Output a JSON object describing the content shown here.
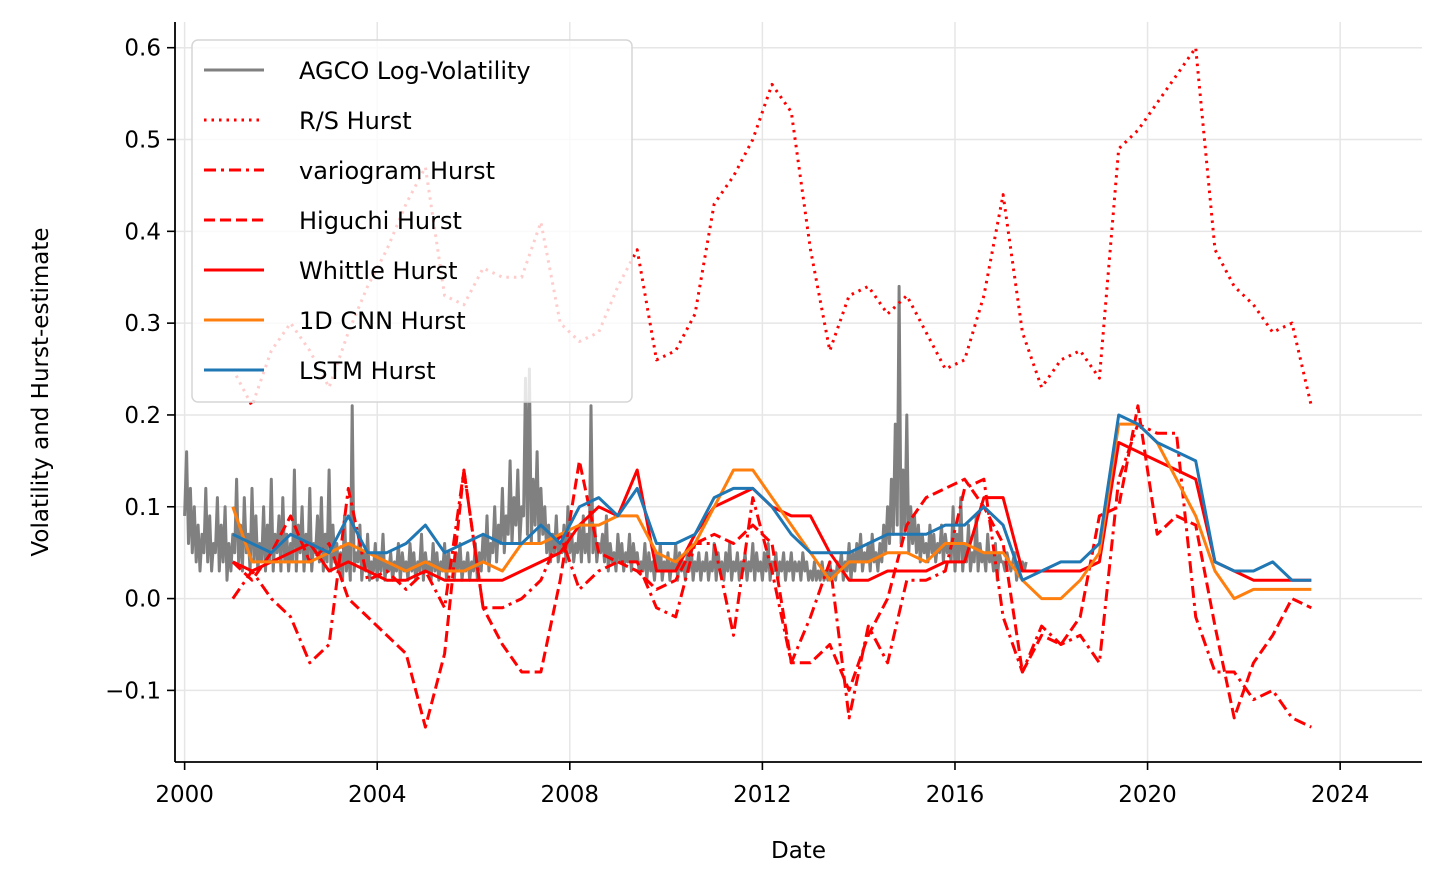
{
  "chart_data": {
    "type": "line",
    "xlabel": "Date",
    "ylabel": "Volatility and Hurst-estimate",
    "xlim": [
      1999.8,
      2025.7
    ],
    "ylim": [
      -0.178,
      0.628
    ],
    "x_ticks": [
      2000,
      2004,
      2008,
      2012,
      2016,
      2020,
      2024
    ],
    "x_tick_labels": [
      "2000",
      "2004",
      "2008",
      "2012",
      "2016",
      "2020",
      "2024"
    ],
    "y_ticks": [
      -0.1,
      0.0,
      0.1,
      0.2,
      0.3,
      0.4,
      0.5,
      0.6
    ],
    "y_tick_labels": [
      "−0.1",
      "0.0",
      "0.1",
      "0.2",
      "0.3",
      "0.4",
      "0.5",
      "0.6"
    ],
    "grid": true,
    "legend_position": "top-left",
    "volatility_series": {
      "name": "AGCO Log-Volatility",
      "color": "#808080",
      "x_start": 2000.0,
      "x_step": 0.04,
      "values": [
        0.09,
        0.16,
        0.06,
        0.12,
        0.05,
        0.1,
        0.04,
        0.08,
        0.03,
        0.07,
        0.05,
        0.12,
        0.04,
        0.09,
        0.03,
        0.06,
        0.05,
        0.11,
        0.03,
        0.08,
        0.04,
        0.1,
        0.02,
        0.06,
        0.03,
        0.07,
        0.05,
        0.13,
        0.04,
        0.08,
        0.03,
        0.11,
        0.05,
        0.07,
        0.03,
        0.12,
        0.04,
        0.09,
        0.03,
        0.06,
        0.04,
        0.1,
        0.03,
        0.08,
        0.04,
        0.13,
        0.03,
        0.07,
        0.05,
        0.09,
        0.03,
        0.11,
        0.04,
        0.07,
        0.03,
        0.06,
        0.04,
        0.14,
        0.03,
        0.08,
        0.05,
        0.1,
        0.03,
        0.07,
        0.04,
        0.12,
        0.03,
        0.06,
        0.05,
        0.09,
        0.04,
        0.11,
        0.03,
        0.07,
        0.04,
        0.14,
        0.03,
        0.08,
        0.04,
        0.06,
        0.03,
        0.05,
        0.02,
        0.09,
        0.03,
        0.06,
        0.02,
        0.21,
        0.03,
        0.05,
        0.04,
        0.08,
        0.02,
        0.05,
        0.03,
        0.07,
        0.02,
        0.04,
        0.03,
        0.06,
        0.02,
        0.05,
        0.03,
        0.07,
        0.02,
        0.04,
        0.03,
        0.05,
        0.02,
        0.04,
        0.03,
        0.06,
        0.02,
        0.05,
        0.03,
        0.04,
        0.02,
        0.06,
        0.03,
        0.05,
        0.02,
        0.04,
        0.03,
        0.07,
        0.02,
        0.05,
        0.03,
        0.04,
        0.02,
        0.06,
        0.03,
        0.05,
        0.02,
        0.04,
        0.03,
        0.06,
        0.02,
        0.05,
        0.03,
        0.04,
        0.02,
        0.05,
        0.03,
        0.06,
        0.02,
        0.04,
        0.03,
        0.05,
        0.02,
        0.04,
        0.03,
        0.06,
        0.02,
        0.05,
        0.03,
        0.07,
        0.04,
        0.09,
        0.03,
        0.06,
        0.05,
        0.1,
        0.04,
        0.08,
        0.06,
        0.12,
        0.05,
        0.09,
        0.07,
        0.15,
        0.06,
        0.11,
        0.08,
        0.14,
        0.06,
        0.1,
        0.09,
        0.24,
        0.07,
        0.25,
        0.06,
        0.13,
        0.08,
        0.16,
        0.06,
        0.12,
        0.07,
        0.1,
        0.05,
        0.08,
        0.04,
        0.07,
        0.05,
        0.09,
        0.04,
        0.06,
        0.05,
        0.08,
        0.04,
        0.1,
        0.05,
        0.07,
        0.04,
        0.06,
        0.05,
        0.08,
        0.04,
        0.09,
        0.05,
        0.07,
        0.04,
        0.21,
        0.05,
        0.08,
        0.04,
        0.06,
        0.05,
        0.07,
        0.04,
        0.09,
        0.03,
        0.06,
        0.04,
        0.05,
        0.03,
        0.07,
        0.04,
        0.06,
        0.03,
        0.05,
        0.04,
        0.07,
        0.03,
        0.06,
        0.04,
        0.05,
        0.03,
        0.04,
        0.03,
        0.06,
        0.02,
        0.05,
        0.03,
        0.04,
        0.02,
        0.05,
        0.03,
        0.06,
        0.02,
        0.04,
        0.03,
        0.05,
        0.02,
        0.04,
        0.03,
        0.06,
        0.02,
        0.05,
        0.03,
        0.04,
        0.02,
        0.05,
        0.03,
        0.06,
        0.02,
        0.04,
        0.03,
        0.05,
        0.02,
        0.04,
        0.03,
        0.05,
        0.02,
        0.04,
        0.03,
        0.06,
        0.02,
        0.05,
        0.03,
        0.04,
        0.02,
        0.05,
        0.03,
        0.06,
        0.02,
        0.04,
        0.03,
        0.05,
        0.02,
        0.04,
        0.03,
        0.05,
        0.02,
        0.04,
        0.03,
        0.06,
        0.02,
        0.05,
        0.03,
        0.04,
        0.02,
        0.05,
        0.03,
        0.06,
        0.02,
        0.04,
        0.03,
        0.05,
        0.02,
        0.04,
        0.03,
        0.05,
        0.02,
        0.04,
        0.03,
        0.05,
        0.02,
        0.04,
        0.03,
        0.04,
        0.02,
        0.05,
        0.03,
        0.04,
        0.02,
        0.03,
        0.02,
        0.04,
        0.02,
        0.03,
        0.02,
        0.04,
        0.02,
        0.03,
        0.02,
        0.04,
        0.02,
        0.03,
        0.02,
        0.04,
        0.03,
        0.05,
        0.02,
        0.04,
        0.03,
        0.06,
        0.02,
        0.05,
        0.03,
        0.06,
        0.04,
        0.07,
        0.03,
        0.05,
        0.04,
        0.06,
        0.03,
        0.07,
        0.04,
        0.05,
        0.03,
        0.06,
        0.04,
        0.08,
        0.05,
        0.1,
        0.06,
        0.13,
        0.07,
        0.19,
        0.08,
        0.34,
        0.06,
        0.14,
        0.07,
        0.2,
        0.05,
        0.1,
        0.06,
        0.09,
        0.05,
        0.08,
        0.04,
        0.07,
        0.05,
        0.06,
        0.04,
        0.08,
        0.05,
        0.07,
        0.04,
        0.06,
        0.05,
        0.08,
        0.04,
        0.07,
        0.05,
        0.06,
        0.04,
        0.1,
        0.03,
        0.07,
        0.04,
        0.11,
        0.03,
        0.06,
        0.04,
        0.08,
        0.03,
        0.05,
        0.04,
        0.09,
        0.03,
        0.06,
        0.04,
        0.05,
        0.03,
        0.07,
        0.04,
        0.05,
        0.03,
        0.06,
        0.02,
        0.05,
        0.04,
        0.04,
        0.03,
        0.05,
        0.04,
        0.03,
        0.04,
        0.05,
        0.02,
        0.04,
        0.03,
        0.04,
        0.03,
        0.04
      ]
    },
    "hurst_series": [
      {
        "name": "R/S Hurst",
        "color": "#ff0000",
        "style": "dotted",
        "x": [
          2001.0,
          2001.4,
          2001.8,
          2002.2,
          2002.6,
          2003.0,
          2003.4,
          2003.8,
          2004.2,
          2004.6,
          2005.0,
          2005.4,
          2005.8,
          2006.2,
          2006.6,
          2007.0,
          2007.4,
          2007.8,
          2008.2,
          2008.6,
          2009.0,
          2009.4,
          2009.8,
          2010.2,
          2010.6,
          2011.0,
          2011.4,
          2011.8,
          2012.2,
          2012.6,
          2013.0,
          2013.4,
          2013.8,
          2014.2,
          2014.6,
          2015.0,
          2015.4,
          2015.8,
          2016.2,
          2016.6,
          2017.0,
          2017.4,
          2017.8,
          2018.2,
          2018.6,
          2019.0,
          2019.4,
          2019.8,
          2020.2,
          2020.6,
          2021.0,
          2021.4,
          2021.8,
          2022.2,
          2022.6,
          2023.0,
          2023.4
        ],
        "y": [
          0.25,
          0.21,
          0.27,
          0.3,
          0.27,
          0.23,
          0.29,
          0.34,
          0.38,
          0.43,
          0.47,
          0.33,
          0.32,
          0.36,
          0.35,
          0.35,
          0.41,
          0.3,
          0.28,
          0.29,
          0.34,
          0.38,
          0.26,
          0.27,
          0.31,
          0.43,
          0.46,
          0.5,
          0.56,
          0.53,
          0.38,
          0.27,
          0.33,
          0.34,
          0.31,
          0.33,
          0.29,
          0.25,
          0.26,
          0.33,
          0.44,
          0.29,
          0.23,
          0.26,
          0.27,
          0.24,
          0.49,
          0.51,
          0.54,
          0.57,
          0.6,
          0.38,
          0.34,
          0.32,
          0.29,
          0.3,
          0.21
        ]
      },
      {
        "name": "variogram Hurst",
        "color": "#ff0000",
        "style": "dashdot",
        "x": [
          2001.0,
          2001.4,
          2001.8,
          2002.2,
          2002.6,
          2003.0,
          2003.4,
          2003.8,
          2004.2,
          2004.6,
          2005.0,
          2005.4,
          2005.8,
          2006.2,
          2006.6,
          2007.0,
          2007.4,
          2007.8,
          2008.2,
          2008.6,
          2009.0,
          2009.4,
          2009.8,
          2010.2,
          2010.6,
          2011.0,
          2011.4,
          2011.8,
          2012.2,
          2012.6,
          2013.0,
          2013.4,
          2013.8,
          2014.2,
          2014.6,
          2015.0,
          2015.4,
          2015.8,
          2016.2,
          2016.6,
          2017.0,
          2017.4,
          2017.8,
          2018.2,
          2018.6,
          2019.0,
          2019.4,
          2019.8,
          2020.2,
          2020.6,
          2021.0,
          2021.4,
          2021.8,
          2022.2,
          2022.6,
          2023.0,
          2023.4
        ],
        "y": [
          0.0,
          0.03,
          0.0,
          -0.02,
          -0.07,
          -0.05,
          0.12,
          0.02,
          0.03,
          0.01,
          0.03,
          -0.01,
          0.14,
          -0.01,
          -0.01,
          0.0,
          0.02,
          0.07,
          0.01,
          0.03,
          0.04,
          0.04,
          -0.01,
          -0.02,
          0.06,
          0.06,
          -0.04,
          0.11,
          0.03,
          -0.07,
          -0.02,
          0.04,
          -0.13,
          -0.03,
          -0.07,
          0.02,
          0.02,
          0.03,
          0.12,
          0.13,
          -0.02,
          -0.08,
          -0.03,
          -0.05,
          -0.04,
          -0.07,
          0.13,
          0.19,
          0.18,
          0.18,
          -0.02,
          -0.08,
          -0.08,
          -0.11,
          -0.1,
          -0.13,
          -0.14
        ]
      },
      {
        "name": "Higuchi Hurst",
        "color": "#ff0000",
        "style": "dashed",
        "x": [
          2001.0,
          2001.4,
          2001.8,
          2002.2,
          2002.6,
          2003.0,
          2003.4,
          2003.8,
          2004.2,
          2004.6,
          2005.0,
          2005.4,
          2005.8,
          2006.2,
          2006.6,
          2007.0,
          2007.4,
          2007.8,
          2008.2,
          2008.6,
          2009.0,
          2009.4,
          2009.8,
          2010.2,
          2010.6,
          2011.0,
          2011.4,
          2011.8,
          2012.2,
          2012.6,
          2013.0,
          2013.4,
          2013.8,
          2014.2,
          2014.6,
          2015.0,
          2015.4,
          2015.8,
          2016.2,
          2016.6,
          2017.0,
          2017.4,
          2017.8,
          2018.2,
          2018.6,
          2019.0,
          2019.4,
          2019.8,
          2020.2,
          2020.6,
          2021.0,
          2021.4,
          2021.8,
          2022.2,
          2022.6,
          2023.0,
          2023.4
        ],
        "y": [
          0.04,
          0.02,
          0.05,
          0.09,
          0.04,
          0.06,
          0.0,
          -0.02,
          -0.04,
          -0.06,
          -0.14,
          -0.06,
          0.14,
          -0.01,
          -0.05,
          -0.08,
          -0.08,
          0.02,
          0.15,
          0.05,
          0.04,
          0.03,
          0.01,
          0.02,
          0.06,
          0.07,
          0.06,
          0.08,
          0.06,
          -0.07,
          -0.07,
          -0.05,
          -0.1,
          -0.04,
          0.0,
          0.08,
          0.11,
          0.12,
          0.13,
          0.1,
          0.06,
          -0.08,
          -0.04,
          -0.05,
          -0.02,
          0.09,
          0.1,
          0.21,
          0.07,
          0.09,
          0.08,
          -0.03,
          -0.13,
          -0.07,
          -0.04,
          0.0,
          -0.01
        ]
      },
      {
        "name": "Whittle Hurst",
        "color": "#ff0000",
        "style": "solid",
        "x": [
          2001.0,
          2001.4,
          2001.8,
          2002.2,
          2002.6,
          2003.0,
          2003.4,
          2003.8,
          2004.2,
          2004.6,
          2005.0,
          2005.4,
          2005.8,
          2006.2,
          2006.6,
          2007.0,
          2007.4,
          2007.8,
          2008.2,
          2008.6,
          2009.0,
          2009.4,
          2009.8,
          2010.2,
          2010.6,
          2011.0,
          2011.4,
          2011.8,
          2012.2,
          2012.6,
          2013.0,
          2013.4,
          2013.8,
          2014.2,
          2014.6,
          2015.0,
          2015.4,
          2015.8,
          2016.2,
          2016.6,
          2017.0,
          2017.4,
          2017.8,
          2018.2,
          2018.6,
          2019.0,
          2019.4,
          2019.8,
          2020.2,
          2020.6,
          2021.0,
          2021.4,
          2021.8,
          2022.2,
          2022.6,
          2023.0,
          2023.4
        ],
        "y": [
          0.04,
          0.03,
          0.04,
          0.05,
          0.06,
          0.03,
          0.04,
          0.03,
          0.02,
          0.02,
          0.03,
          0.02,
          0.02,
          0.02,
          0.02,
          0.03,
          0.04,
          0.05,
          0.08,
          0.1,
          0.09,
          0.14,
          0.03,
          0.03,
          0.07,
          0.1,
          0.11,
          0.12,
          0.1,
          0.09,
          0.09,
          0.05,
          0.02,
          0.02,
          0.03,
          0.03,
          0.03,
          0.04,
          0.04,
          0.11,
          0.11,
          0.03,
          0.03,
          0.03,
          0.03,
          0.04,
          0.17,
          0.16,
          0.15,
          0.14,
          0.13,
          0.04,
          0.03,
          0.02,
          0.02,
          0.02,
          0.02
        ]
      },
      {
        "name": "1D CNN Hurst",
        "color": "#ff7f0e",
        "style": "solid",
        "x": [
          2001.0,
          2001.4,
          2001.8,
          2002.2,
          2002.6,
          2003.0,
          2003.4,
          2003.8,
          2004.2,
          2004.6,
          2005.0,
          2005.4,
          2005.8,
          2006.2,
          2006.6,
          2007.0,
          2007.4,
          2007.8,
          2008.2,
          2008.6,
          2009.0,
          2009.4,
          2009.8,
          2010.2,
          2010.6,
          2011.0,
          2011.4,
          2011.8,
          2012.2,
          2012.6,
          2013.0,
          2013.4,
          2013.8,
          2014.2,
          2014.6,
          2015.0,
          2015.4,
          2015.8,
          2016.2,
          2016.6,
          2017.0,
          2017.4,
          2017.8,
          2018.2,
          2018.6,
          2019.0,
          2019.4,
          2019.8,
          2020.2,
          2020.6,
          2021.0,
          2021.4,
          2021.8,
          2022.2,
          2022.6,
          2023.0,
          2023.4
        ],
        "y": [
          0.1,
          0.04,
          0.04,
          0.04,
          0.04,
          0.05,
          0.06,
          0.05,
          0.04,
          0.03,
          0.04,
          0.03,
          0.03,
          0.04,
          0.03,
          0.06,
          0.06,
          0.07,
          0.08,
          0.08,
          0.09,
          0.09,
          0.05,
          0.04,
          0.06,
          0.1,
          0.14,
          0.14,
          0.11,
          0.08,
          0.05,
          0.02,
          0.04,
          0.04,
          0.05,
          0.05,
          0.04,
          0.06,
          0.06,
          0.05,
          0.05,
          0.02,
          0.0,
          0.0,
          0.02,
          0.05,
          0.19,
          0.19,
          0.17,
          0.13,
          0.09,
          0.03,
          0.0,
          0.01,
          0.01,
          0.01,
          0.01
        ]
      },
      {
        "name": "LSTM Hurst",
        "color": "#1f77b4",
        "style": "solid",
        "x": [
          2001.0,
          2001.4,
          2001.8,
          2002.2,
          2002.6,
          2003.0,
          2003.4,
          2003.8,
          2004.2,
          2004.6,
          2005.0,
          2005.4,
          2005.8,
          2006.2,
          2006.6,
          2007.0,
          2007.4,
          2007.8,
          2008.2,
          2008.6,
          2009.0,
          2009.4,
          2009.8,
          2010.2,
          2010.6,
          2011.0,
          2011.4,
          2011.8,
          2012.2,
          2012.6,
          2013.0,
          2013.4,
          2013.8,
          2014.2,
          2014.6,
          2015.0,
          2015.4,
          2015.8,
          2016.2,
          2016.6,
          2017.0,
          2017.4,
          2017.8,
          2018.2,
          2018.6,
          2019.0,
          2019.4,
          2019.8,
          2020.2,
          2020.6,
          2021.0,
          2021.4,
          2021.8,
          2022.2,
          2022.6,
          2023.0,
          2023.4
        ],
        "y": [
          0.07,
          0.06,
          0.05,
          0.07,
          0.06,
          0.05,
          0.09,
          0.05,
          0.05,
          0.06,
          0.08,
          0.05,
          0.06,
          0.07,
          0.06,
          0.06,
          0.08,
          0.06,
          0.1,
          0.11,
          0.09,
          0.12,
          0.06,
          0.06,
          0.07,
          0.11,
          0.12,
          0.12,
          0.1,
          0.07,
          0.05,
          0.05,
          0.05,
          0.06,
          0.07,
          0.07,
          0.07,
          0.08,
          0.08,
          0.1,
          0.08,
          0.02,
          0.03,
          0.04,
          0.04,
          0.06,
          0.2,
          0.19,
          0.17,
          0.16,
          0.15,
          0.04,
          0.03,
          0.03,
          0.04,
          0.02,
          0.02
        ]
      }
    ]
  }
}
